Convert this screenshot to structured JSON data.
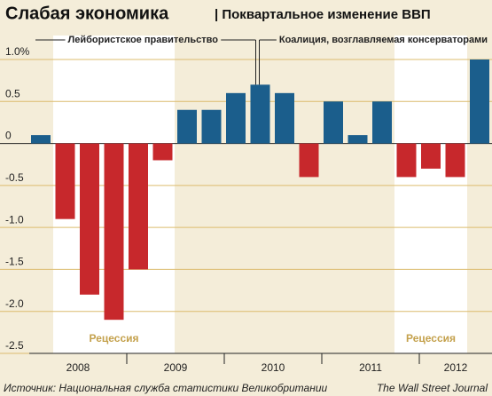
{
  "chart_data": {
    "type": "bar",
    "title": "Слабая экономика",
    "subtitle": "| Поквартальное изменение ВВП",
    "annotations": [
      "Лейбористское правительство",
      "Коалиция, возглавляемая консерваторами"
    ],
    "source": "Источник: Национальная служба статистики Великобритании",
    "credit": "The Wall Street Journal",
    "categories": [
      null,
      null,
      null,
      null,
      null,
      null,
      null,
      null,
      null,
      null,
      null,
      null,
      null,
      null,
      null,
      null,
      null,
      null,
      null
    ],
    "year_labels": [
      "2008",
      "2009",
      "2010",
      "2011",
      "2012"
    ],
    "values": [
      0.1,
      -0.9,
      -1.8,
      -2.1,
      -1.5,
      -0.2,
      0.4,
      0.4,
      0.6,
      0.7,
      0.6,
      -0.4,
      0.5,
      0.1,
      0.5,
      -0.4,
      -0.3,
      -0.4,
      1.0
    ],
    "positive_color": "#1b5e8c",
    "negative_color": "#c7282c",
    "recessions": [
      {
        "label": "Рецессия",
        "from": 1,
        "to": 5
      },
      {
        "label": "Рецессия",
        "from": 15,
        "to": 17
      }
    ],
    "ylim": [
      -2.5,
      1.0
    ],
    "yticks": [
      {
        "value": 1.0,
        "label": "1.0%"
      },
      0.5,
      0,
      -0.5,
      {
        "value": -1.0,
        "label": "-1.0"
      },
      -1.5,
      {
        "value": -2.0,
        "label": "-2.0"
      },
      -2.5
    ],
    "grid": true
  }
}
